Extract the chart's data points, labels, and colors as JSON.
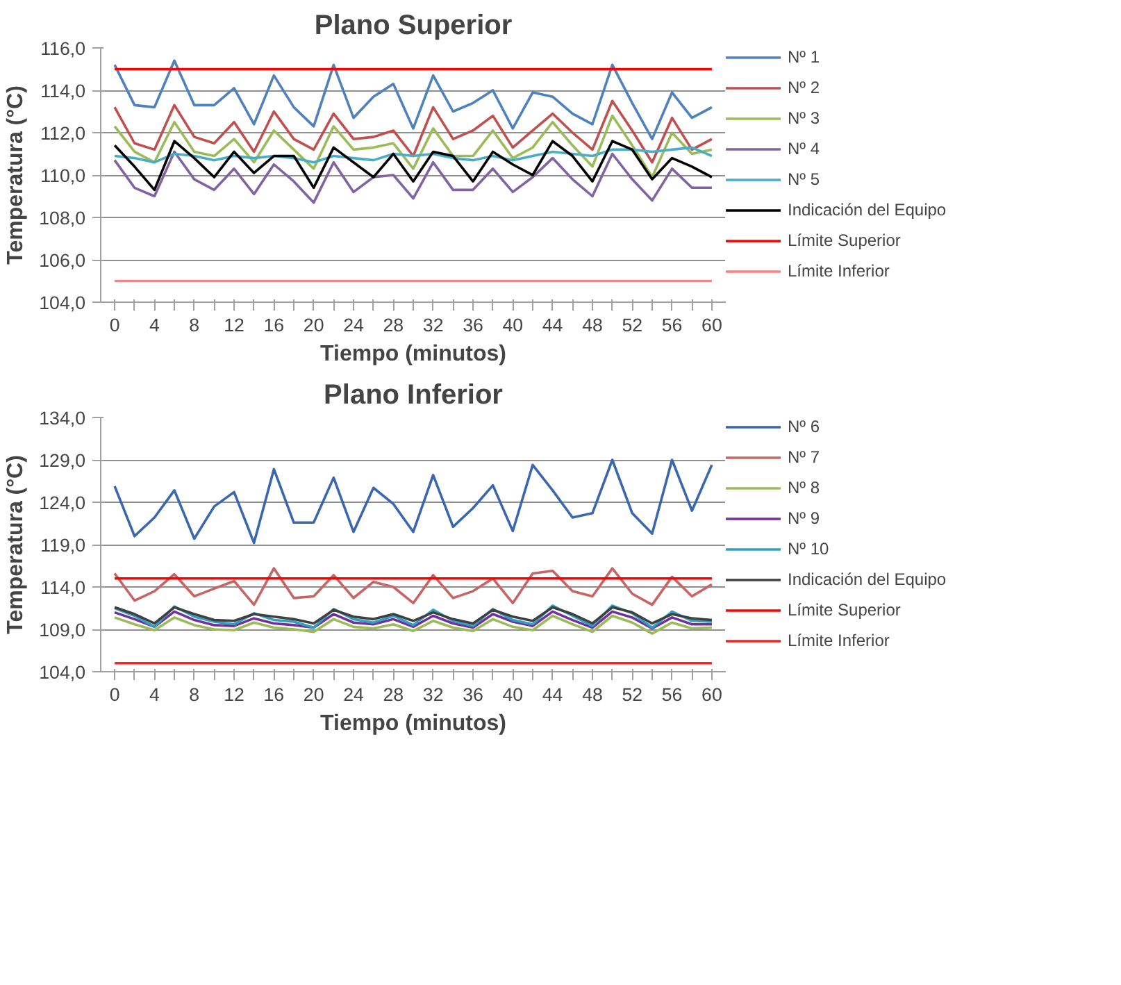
{
  "chart_data": [
    {
      "type": "line",
      "title": "Plano Superior",
      "xlabel": "Tiempo (minutos)",
      "ylabel": "Temperatura (°C)",
      "grid": "y",
      "legend": "right",
      "x": [
        0,
        2,
        4,
        6,
        8,
        10,
        12,
        14,
        16,
        18,
        20,
        22,
        24,
        26,
        28,
        30,
        32,
        34,
        36,
        38,
        40,
        42,
        44,
        46,
        48,
        50,
        52,
        54,
        56,
        58,
        60
      ],
      "xlim": [
        -1.4,
        61.4
      ],
      "xticks": [
        0,
        {
          "value": 2,
          "label": null
        },
        4,
        {
          "value": 6,
          "label": null
        },
        8,
        {
          "value": 10,
          "label": null
        },
        12,
        {
          "value": 14,
          "label": null
        },
        16,
        {
          "value": 18,
          "label": null
        },
        20,
        {
          "value": 22,
          "label": null
        },
        24,
        {
          "value": 26,
          "label": null
        },
        28,
        {
          "value": 30,
          "label": null
        },
        32,
        {
          "value": 34,
          "label": null
        },
        36,
        {
          "value": 38,
          "label": null
        },
        40,
        {
          "value": 42,
          "label": null
        },
        44,
        {
          "value": 46,
          "label": null
        },
        48,
        {
          "value": 50,
          "label": null
        },
        52,
        {
          "value": 54,
          "label": null
        },
        56,
        {
          "value": 58,
          "label": null
        },
        60
      ],
      "ylim": [
        104,
        116
      ],
      "yticks": [
        {
          "value": 104,
          "label": "104,0"
        },
        {
          "value": 106,
          "label": "106,0"
        },
        {
          "value": 108,
          "label": "108,0"
        },
        {
          "value": 110,
          "label": "110,0"
        },
        {
          "value": 112,
          "label": "112,0"
        },
        {
          "value": 114,
          "label": "114,0"
        },
        {
          "value": 116,
          "label": "116,0"
        }
      ],
      "series": [
        {
          "name": "Nº 1",
          "color": "#4f81bd",
          "values": [
            115.2,
            113.3,
            113.2,
            115.4,
            113.3,
            113.3,
            114.1,
            112.4,
            114.7,
            113.2,
            112.3,
            115.2,
            112.7,
            113.7,
            114.3,
            112.2,
            114.7,
            113.0,
            113.4,
            114.0,
            112.2,
            113.9,
            113.7,
            112.9,
            112.4,
            115.2,
            113.4,
            111.7,
            113.9,
            112.7,
            113.2
          ]
        },
        {
          "name": "Nº 2",
          "color": "#c0504d",
          "values": [
            113.2,
            111.5,
            111.2,
            113.3,
            111.8,
            111.5,
            112.5,
            111.1,
            113.0,
            111.7,
            111.2,
            112.9,
            111.7,
            111.8,
            112.1,
            110.9,
            113.2,
            111.7,
            112.1,
            112.8,
            111.3,
            112.1,
            112.9,
            112.0,
            111.2,
            113.5,
            112.1,
            110.6,
            112.7,
            111.2,
            111.7
          ]
        },
        {
          "name": "Nº 3",
          "color": "#9bbb59",
          "values": [
            112.3,
            111.1,
            110.6,
            112.5,
            111.1,
            110.9,
            111.7,
            110.6,
            112.1,
            111.2,
            110.3,
            112.3,
            111.2,
            111.3,
            111.5,
            110.3,
            112.2,
            110.9,
            110.9,
            112.1,
            110.8,
            111.3,
            112.5,
            111.4,
            110.4,
            112.8,
            111.4,
            109.9,
            112.0,
            111.0,
            111.2
          ]
        },
        {
          "name": "Nº 4",
          "color": "#8064a2",
          "values": [
            110.7,
            109.4,
            109.0,
            111.1,
            109.8,
            109.3,
            110.3,
            109.1,
            110.5,
            109.7,
            108.7,
            110.6,
            109.2,
            109.9,
            110.0,
            108.9,
            110.6,
            109.3,
            109.3,
            110.3,
            109.2,
            109.9,
            110.8,
            109.8,
            109.0,
            111.0,
            109.8,
            108.8,
            110.3,
            109.4,
            109.4
          ]
        },
        {
          "name": "Nº 5",
          "color": "#4bacc6",
          "values": [
            110.9,
            110.8,
            110.6,
            111.0,
            110.9,
            110.7,
            110.9,
            110.8,
            110.9,
            110.8,
            110.6,
            110.9,
            110.8,
            110.7,
            111.0,
            110.9,
            111.0,
            110.8,
            110.7,
            110.9,
            110.7,
            110.9,
            111.1,
            111.0,
            110.9,
            111.2,
            111.2,
            111.1,
            111.2,
            111.3,
            110.9
          ]
        },
        {
          "name": "Indicación del Equipo",
          "color": "#000000",
          "values": [
            111.4,
            110.4,
            109.3,
            111.6,
            110.8,
            109.9,
            111.1,
            110.1,
            110.9,
            110.9,
            109.4,
            111.3,
            110.6,
            109.9,
            111.0,
            109.7,
            111.1,
            110.9,
            109.7,
            111.1,
            110.5,
            110.0,
            111.6,
            110.9,
            109.7,
            111.6,
            111.2,
            109.8,
            110.8,
            110.4,
            109.9
          ]
        },
        {
          "name": "Límite Superior",
          "color": "#ff0000",
          "values": [
            115,
            115,
            115,
            115,
            115,
            115,
            115,
            115,
            115,
            115,
            115,
            115,
            115,
            115,
            115,
            115,
            115,
            115,
            115,
            115,
            115,
            115,
            115,
            115,
            115,
            115,
            115,
            115,
            115,
            115,
            115
          ]
        },
        {
          "name": "Límite Inferior",
          "color": "#ff8080",
          "values": [
            105,
            105,
            105,
            105,
            105,
            105,
            105,
            105,
            105,
            105,
            105,
            105,
            105,
            105,
            105,
            105,
            105,
            105,
            105,
            105,
            105,
            105,
            105,
            105,
            105,
            105,
            105,
            105,
            105,
            105,
            105
          ]
        }
      ]
    },
    {
      "type": "line",
      "title": "Plano Inferior",
      "xlabel": "Tiempo (minutos)",
      "ylabel": "Temperatura (°C)",
      "grid": "y",
      "legend": "right",
      "x": [
        0,
        2,
        4,
        6,
        8,
        10,
        12,
        14,
        16,
        18,
        20,
        22,
        24,
        26,
        28,
        30,
        32,
        34,
        36,
        38,
        40,
        42,
        44,
        46,
        48,
        50,
        52,
        54,
        56,
        58,
        60
      ],
      "xlim": [
        -1.4,
        61.4
      ],
      "xticks": [
        0,
        {
          "value": 2,
          "label": null
        },
        4,
        {
          "value": 6,
          "label": null
        },
        8,
        {
          "value": 10,
          "label": null
        },
        12,
        {
          "value": 14,
          "label": null
        },
        16,
        {
          "value": 18,
          "label": null
        },
        20,
        {
          "value": 22,
          "label": null
        },
        24,
        {
          "value": 26,
          "label": null
        },
        28,
        {
          "value": 30,
          "label": null
        },
        32,
        {
          "value": 34,
          "label": null
        },
        36,
        {
          "value": 38,
          "label": null
        },
        40,
        {
          "value": 42,
          "label": null
        },
        44,
        {
          "value": 46,
          "label": null
        },
        48,
        {
          "value": 50,
          "label": null
        },
        52,
        {
          "value": 54,
          "label": null
        },
        56,
        {
          "value": 58,
          "label": null
        },
        60
      ],
      "ylim": [
        104,
        134
      ],
      "yticks": [
        {
          "value": 104,
          "label": "104,0"
        },
        {
          "value": 109,
          "label": "109,0"
        },
        {
          "value": 114,
          "label": "114,0"
        },
        {
          "value": 119,
          "label": "119,0"
        },
        {
          "value": 124,
          "label": "124,0"
        },
        {
          "value": 129,
          "label": "129,0"
        },
        {
          "value": 134,
          "label": "134,0"
        }
      ],
      "series": [
        {
          "name": "Nº 6",
          "color": "#3a67b0",
          "values": [
            125.9,
            120.0,
            122.2,
            125.4,
            119.7,
            123.5,
            125.2,
            119.2,
            127.9,
            121.6,
            121.6,
            126.9,
            120.5,
            125.7,
            123.8,
            120.5,
            127.2,
            121.1,
            123.3,
            126.0,
            120.6,
            128.4,
            125.4,
            122.2,
            122.7,
            129.0,
            122.7,
            120.3,
            129.0,
            123.0,
            128.4
          ]
        },
        {
          "name": "Nº 7",
          "color": "#c86464",
          "values": [
            115.6,
            112.4,
            113.5,
            115.5,
            112.9,
            113.8,
            114.7,
            111.9,
            116.2,
            112.7,
            112.9,
            115.4,
            112.7,
            114.6,
            114.0,
            112.1,
            115.4,
            112.7,
            113.5,
            115.0,
            112.1,
            115.6,
            115.9,
            113.5,
            112.9,
            116.2,
            113.2,
            111.9,
            115.2,
            112.9,
            114.3
          ]
        },
        {
          "name": "Nº 8",
          "color": "#9bbb59",
          "values": [
            110.4,
            109.6,
            108.9,
            110.4,
            109.5,
            109.0,
            108.9,
            109.8,
            109.2,
            109.0,
            108.7,
            110.2,
            109.3,
            109.1,
            109.6,
            108.8,
            110.0,
            109.2,
            108.8,
            110.2,
            109.3,
            108.9,
            110.6,
            109.6,
            108.7,
            110.6,
            109.8,
            108.5,
            109.8,
            109.1,
            109.2
          ]
        },
        {
          "name": "Nº 9",
          "color": "#7030a0",
          "values": [
            111.0,
            110.2,
            109.3,
            111.1,
            110.1,
            109.5,
            109.4,
            110.3,
            109.7,
            109.5,
            109.2,
            110.8,
            109.8,
            109.6,
            110.2,
            109.3,
            110.6,
            109.7,
            109.2,
            110.8,
            109.9,
            109.4,
            111.1,
            110.1,
            109.2,
            111.1,
            110.4,
            109.1,
            110.4,
            109.6,
            109.6
          ]
        },
        {
          "name": "Nº 10",
          "color": "#31a0c0",
          "values": [
            111.5,
            110.6,
            109.3,
            111.7,
            110.5,
            109.9,
            109.6,
            110.9,
            110.1,
            109.9,
            109.2,
            111.4,
            110.2,
            109.8,
            110.6,
            109.5,
            111.3,
            110.0,
            109.4,
            111.4,
            110.1,
            109.6,
            111.8,
            110.6,
            109.4,
            111.8,
            110.9,
            109.2,
            111.1,
            110.0,
            109.9
          ]
        },
        {
          "name": "Indicación del Equipo",
          "color": "#404040",
          "values": [
            111.6,
            110.8,
            109.7,
            111.6,
            110.8,
            110.1,
            110.0,
            110.8,
            110.5,
            110.2,
            109.7,
            111.3,
            110.5,
            110.2,
            110.8,
            110.0,
            111.0,
            110.2,
            109.7,
            111.3,
            110.5,
            110.0,
            111.6,
            110.8,
            109.7,
            111.6,
            111.0,
            109.7,
            110.8,
            110.3,
            110.1
          ]
        },
        {
          "name": "Límite Superior",
          "color": "#ff0000",
          "values": [
            115,
            115,
            115,
            115,
            115,
            115,
            115,
            115,
            115,
            115,
            115,
            115,
            115,
            115,
            115,
            115,
            115,
            115,
            115,
            115,
            115,
            115,
            115,
            115,
            115,
            115,
            115,
            115,
            115,
            115,
            115
          ]
        },
        {
          "name": "Límite Inferior",
          "color": "#ff2020",
          "values": [
            105,
            105,
            105,
            105,
            105,
            105,
            105,
            105,
            105,
            105,
            105,
            105,
            105,
            105,
            105,
            105,
            105,
            105,
            105,
            105,
            105,
            105,
            105,
            105,
            105,
            105,
            105,
            105,
            105,
            105,
            105
          ]
        }
      ]
    }
  ]
}
